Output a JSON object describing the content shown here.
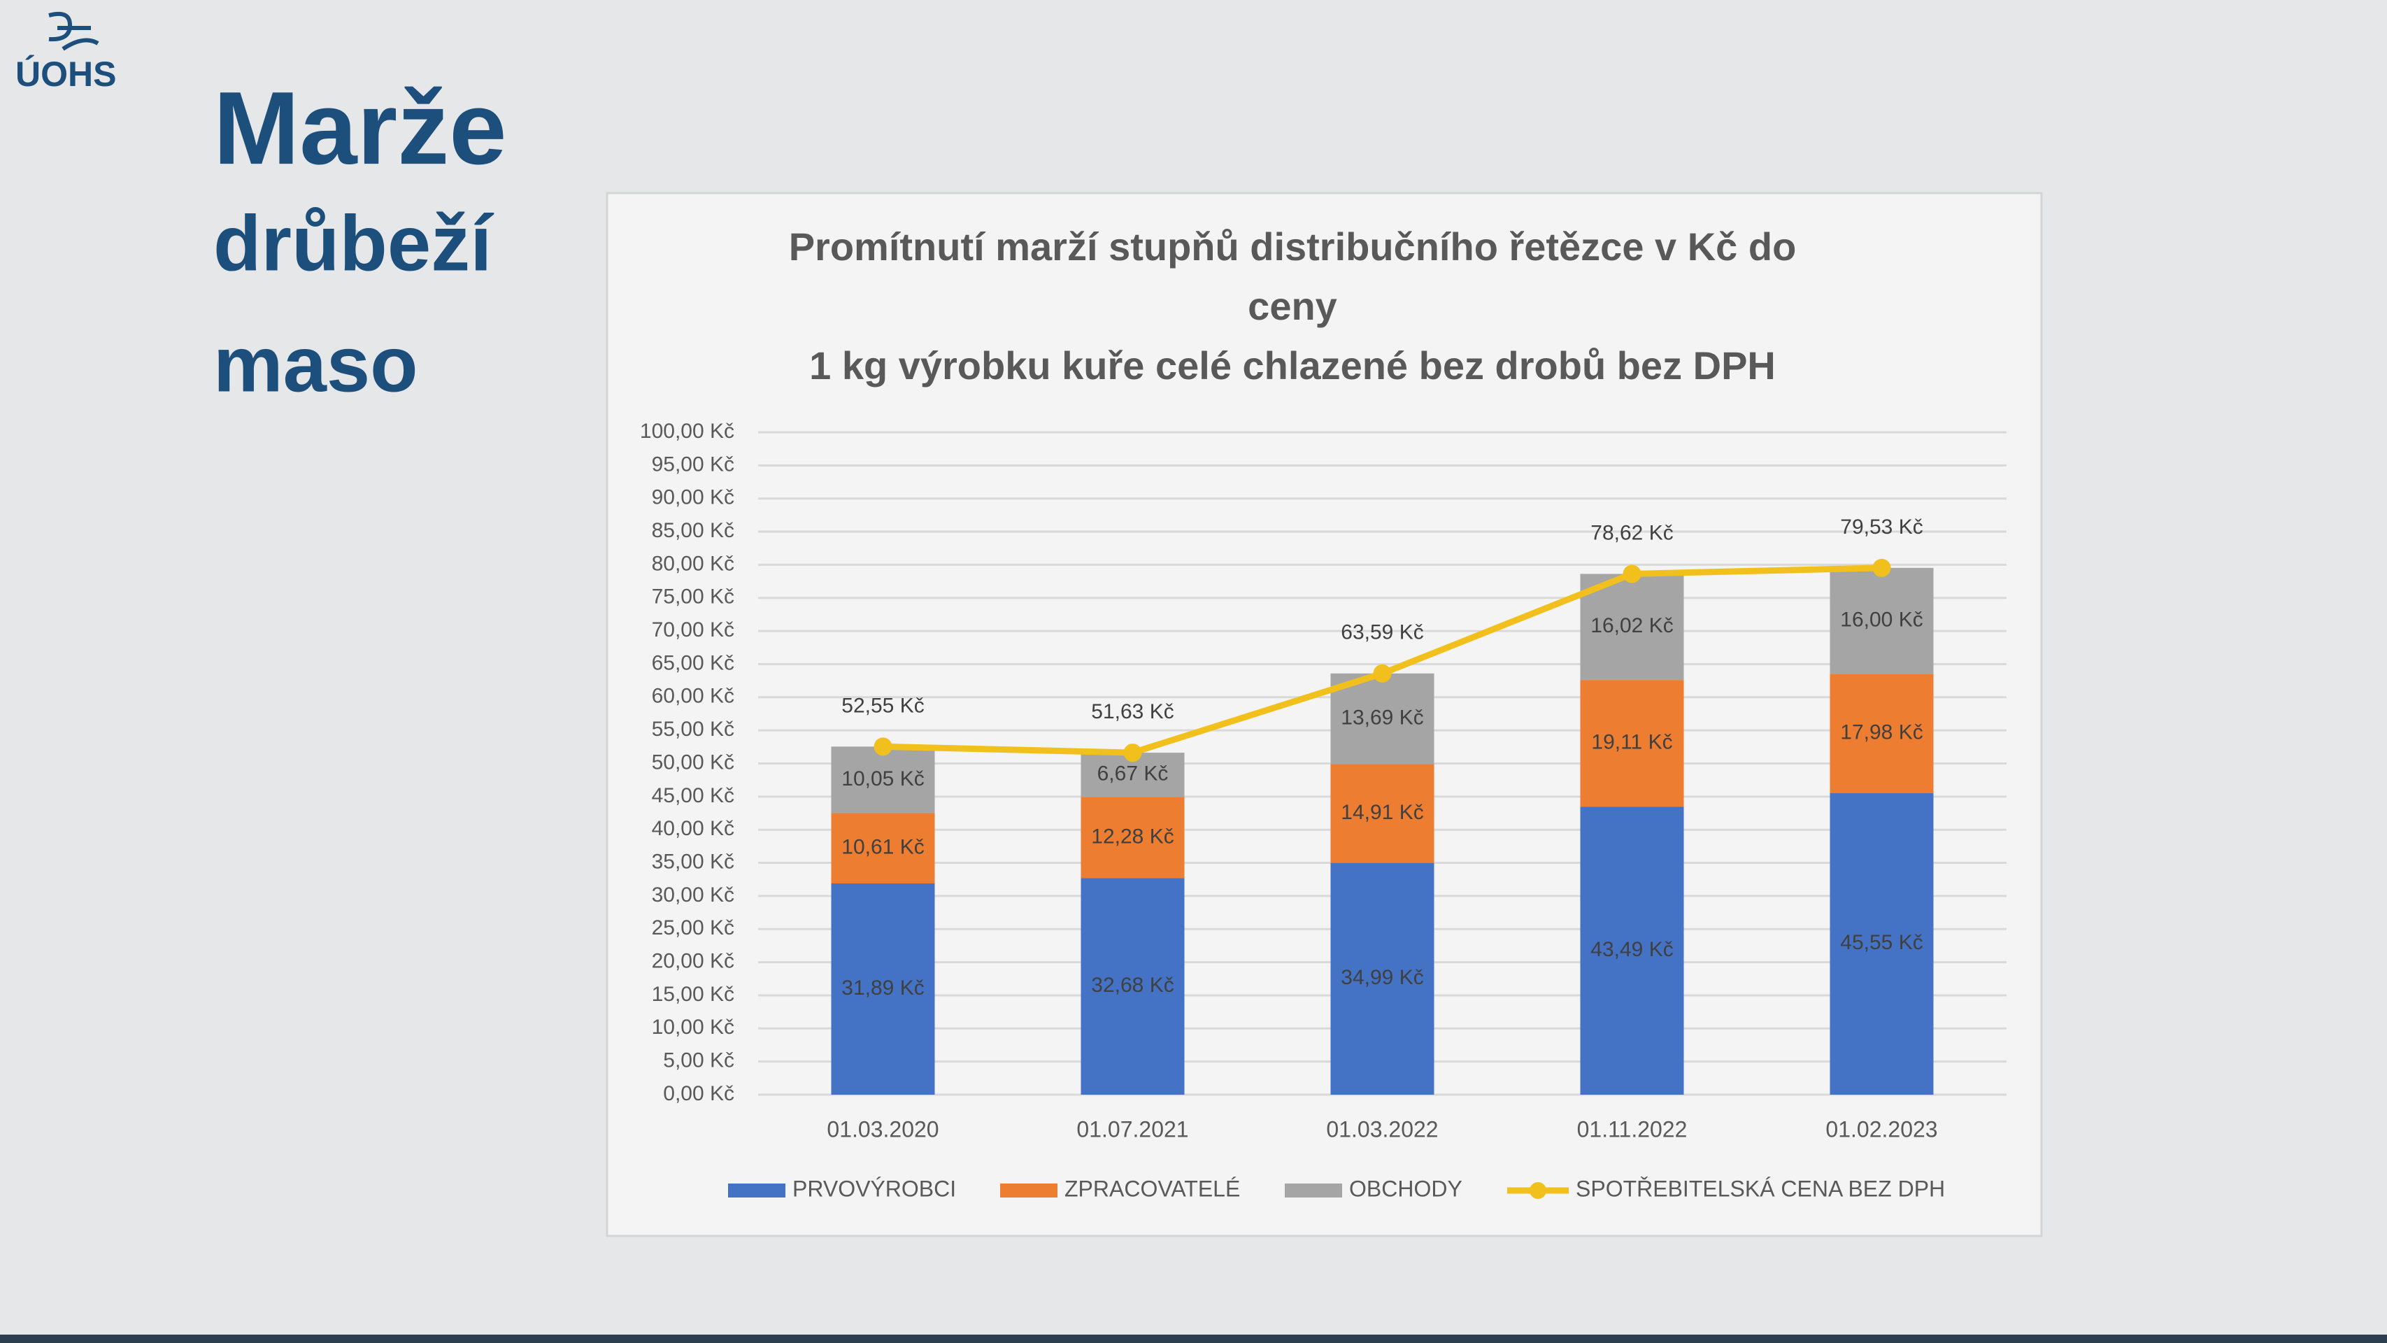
{
  "logo": "ÚOHS",
  "heading": [
    "Marže",
    "drůbeží",
    "maso"
  ],
  "chart_data": {
    "type": "bar",
    "stacked": true,
    "title": [
      "Promítnutí marží stupňů distribučního řetězce v Kč do",
      "ceny",
      "1 kg výrobku kuře celé chlazené bez drobů bez DPH"
    ],
    "categories": [
      "01.03.2020",
      "01.07.2021",
      "01.03.2022",
      "01.11.2022",
      "01.02.2023"
    ],
    "series": [
      {
        "name": "PRVOVÝROBCI",
        "color": "#4472c4",
        "values": [
          31.89,
          32.68,
          34.99,
          43.49,
          45.55
        ],
        "value_labels": [
          "31,89 Kč",
          "32,68 Kč",
          "34,99 Kč",
          "43,49 Kč",
          "45,55 Kč"
        ]
      },
      {
        "name": "ZPRACOVATELÉ",
        "color": "#ed7d31",
        "values": [
          10.61,
          12.28,
          14.91,
          19.11,
          17.98
        ],
        "value_labels": [
          "10,61 Kč",
          "12,28 Kč",
          "14,91 Kč",
          "19,11 Kč",
          "17,98 Kč"
        ]
      },
      {
        "name": "OBCHODY",
        "color": "#a5a5a5",
        "values": [
          10.05,
          6.67,
          13.69,
          16.02,
          16.0
        ],
        "value_labels": [
          "10,05 Kč",
          "6,67 Kč",
          "13,69 Kč",
          "16,02 Kč",
          "16,00 Kč"
        ]
      },
      {
        "name": "SPOTŘEBITELSKÁ CENA BEZ DPH",
        "type": "line",
        "color": "#f2c01c",
        "values": [
          52.55,
          51.63,
          63.59,
          78.62,
          79.53
        ],
        "value_labels": [
          "52,55 Kč",
          "51,63 Kč",
          "63,59 Kč",
          "78,62 Kč",
          "79,53 Kč"
        ]
      }
    ],
    "ylim": [
      0,
      100
    ],
    "yticks": [
      {
        "value": 0,
        "label": "0,00 Kč"
      },
      {
        "value": 5,
        "label": "5,00 Kč"
      },
      {
        "value": 10,
        "label": "10,00 Kč"
      },
      {
        "value": 15,
        "label": "15,00 Kč"
      },
      {
        "value": 20,
        "label": "20,00 Kč"
      },
      {
        "value": 25,
        "label": "25,00 Kč"
      },
      {
        "value": 30,
        "label": "30,00 Kč"
      },
      {
        "value": 35,
        "label": "35,00 Kč"
      },
      {
        "value": 40,
        "label": "40,00 Kč"
      },
      {
        "value": 45,
        "label": "45,00 Kč"
      },
      {
        "value": 50,
        "label": "50,00 Kč"
      },
      {
        "value": 55,
        "label": "55,00 Kč"
      },
      {
        "value": 60,
        "label": "60,00 Kč"
      },
      {
        "value": 65,
        "label": "65,00 Kč"
      },
      {
        "value": 70,
        "label": "70,00 Kč"
      },
      {
        "value": 75,
        "label": "75,00 Kč"
      },
      {
        "value": 80,
        "label": "80,00 Kč"
      },
      {
        "value": 85,
        "label": "85,00 Kč"
      },
      {
        "value": 90,
        "label": "90,00 Kč"
      },
      {
        "value": 95,
        "label": "95,00 Kč"
      },
      {
        "value": 100,
        "label": "100,00 Kč"
      }
    ],
    "grid": true,
    "legend": "bottom"
  }
}
